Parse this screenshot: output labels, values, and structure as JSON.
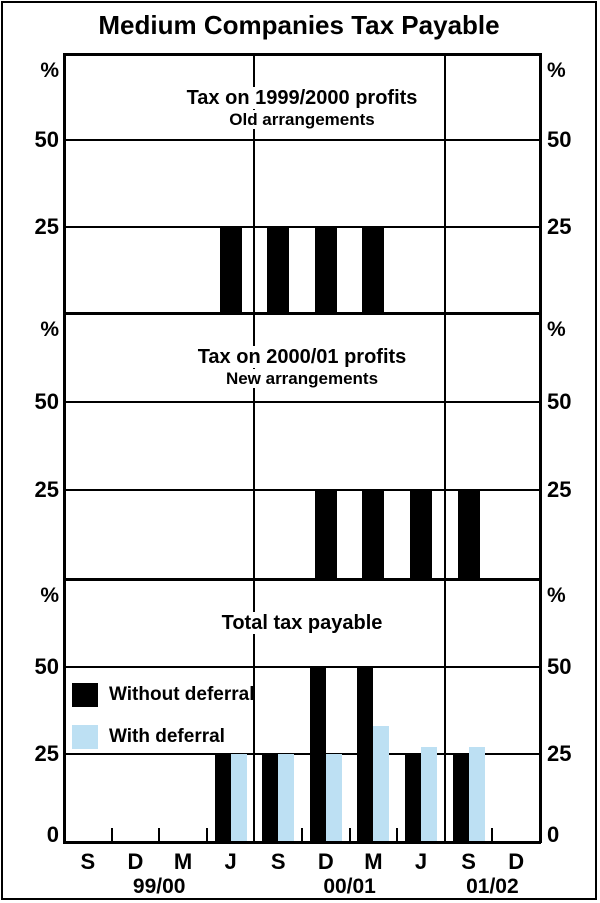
{
  "title": "Medium Companies Tax Payable",
  "chart_data": {
    "type": "bar",
    "categories": [
      "Sep 1999",
      "Dec 1999",
      "Mar 2000",
      "Jun 2000",
      "Sep 2000",
      "Dec 2000",
      "Mar 2001",
      "Jun 2001",
      "Sep 2001",
      "Dec 2001"
    ],
    "x_tick_labels": [
      "S",
      "D",
      "M",
      "J",
      "S",
      "D",
      "M",
      "J",
      "S",
      "D"
    ],
    "year_labels": [
      {
        "text": "99/00",
        "boundary": 2
      },
      {
        "text": "00/01",
        "boundary": 6
      },
      {
        "text": "01/02",
        "boundary": 9
      }
    ],
    "unit": "%",
    "ylim": [
      0,
      75
    ],
    "yticks": [
      25,
      50
    ],
    "grid": true,
    "vertical_gridline_boundaries": [
      4,
      8
    ],
    "panels": [
      {
        "title": "Tax on 1999/2000 profits",
        "subtitle": "Old arrangements",
        "series": [
          {
            "name": "Tax payable",
            "color": "#000000",
            "values": [
              0,
              0,
              0,
              25,
              25,
              25,
              25,
              0,
              0,
              0
            ]
          }
        ]
      },
      {
        "title": "Tax on 2000/01 profits",
        "subtitle": "New arrangements",
        "series": [
          {
            "name": "Tax payable",
            "color": "#000000",
            "values": [
              0,
              0,
              0,
              0,
              0,
              25,
              25,
              25,
              25,
              0
            ]
          }
        ]
      },
      {
        "title": "Total tax payable",
        "subtitle": "",
        "legend": [
          "Without deferral",
          "With deferral"
        ],
        "series": [
          {
            "name": "Without deferral",
            "color": "#000000",
            "values": [
              0,
              0,
              0,
              25,
              25,
              50,
              50,
              25,
              25,
              0
            ]
          },
          {
            "name": "With deferral",
            "color": "#BDE0F3",
            "values": [
              0,
              0,
              0,
              25,
              25,
              25,
              33,
              27,
              27,
              0
            ]
          }
        ]
      }
    ]
  },
  "colors": {
    "black": "#000000",
    "light_blue": "#BDE0F3",
    "background": "#FFFFFF"
  }
}
